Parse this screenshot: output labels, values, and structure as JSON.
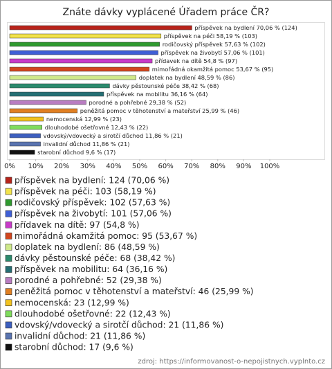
{
  "chart_data": {
    "type": "bar",
    "orientation": "horizontal",
    "title": "Znáte dávky vyplácené Úřadem práce ČR?",
    "categories": [
      "příspěvek na bydlení",
      "příspěvek na péči",
      "rodičovský příspěvek",
      "příspěvek na živobytí",
      "přídavek na dítě",
      "mimořádná okamžitá pomoc",
      "doplatek na bydlení",
      "dávky pěstounské péče",
      "příspěvek na mobilitu",
      "porodné a pohřebné",
      "peněžitá pomoc v těhotenství a mateřství",
      "nemocenská",
      "dlouhodobé ošetřovné",
      "vdovský/vdovecký a sirotčí důchod",
      "invalidní důchod",
      "starobní důchod"
    ],
    "values": [
      70.06,
      58.19,
      57.63,
      57.06,
      54.8,
      53.67,
      48.59,
      38.42,
      36.16,
      29.38,
      25.99,
      12.99,
      12.43,
      11.86,
      11.86,
      9.6
    ],
    "value_labels": [
      "70,06 % (124)",
      "58,19 % (103)",
      "57,63 % (102)",
      "57,06 % (101)",
      "54,8 % (97)",
      "53,67 % (95)",
      "48,59 % (86)",
      "38,42 % (68)",
      "36,16 % (64)",
      "29,38 % (52)",
      "25,99 % (46)",
      "12,99 % (23)",
      "12,43 % (22)",
      "11,86 % (21)",
      "11,86 % (21)",
      "9,6 % (17)"
    ],
    "colors": [
      "#b8231a",
      "#f2e34a",
      "#2f9a2f",
      "#3f5fd6",
      "#c93bc9",
      "#d2461e",
      "#cfe98a",
      "#2b8a6d",
      "#256f74",
      "#b97cc1",
      "#e07f22",
      "#f2c21f",
      "#7fdc5c",
      "#3d5fbf",
      "#5a74b0",
      "#111111"
    ],
    "legend": [
      "příspěvek na bydlení: 124 (70,06 %)",
      "příspěvek na péči: 103 (58,19 %)",
      "rodičovský příspěvek: 102 (57,63 %)",
      "příspěvek na živobytí: 101 (57,06 %)",
      "přídavek na dítě: 97 (54,8 %)",
      "mimořádná okamžitá pomoc: 95 (53,67 %)",
      "doplatek na bydlení: 86 (48,59 %)",
      "dávky pěstounské péče: 68 (38,42 %)",
      "příspěvek na mobilitu: 64 (36,16 %)",
      "porodné a pohřebné: 52 (29,38 %)",
      "peněžitá pomoc v těhotenství a mateřství: 46 (25,99 %)",
      "nemocenská: 23 (12,99 %)",
      "dlouhodobé ošetřovné: 22 (12,43 %)",
      "vdovský/vdovecký a sirotčí důchod: 21 (11,86 %)",
      "invalidní důchod: 21 (11,86 %)",
      "starobní důchod: 17 (9,6 %)"
    ],
    "xlim": [
      0,
      100
    ],
    "xticks": [
      {
        "value": 0,
        "label": "0%"
      },
      {
        "value": 10,
        "label": "10%"
      },
      {
        "value": 20,
        "label": "20%"
      },
      {
        "value": 30,
        "label": "30%"
      },
      {
        "value": 40,
        "label": "40%"
      },
      {
        "value": 50,
        "label": "50%"
      },
      {
        "value": 60,
        "label": "60%"
      },
      {
        "value": 70,
        "label": "70%"
      },
      {
        "value": 80,
        "label": "80%"
      },
      {
        "value": 90,
        "label": "90%"
      },
      {
        "value": 100,
        "label": "100%"
      }
    ],
    "source": "zdroj: https://informovanost-o-nepojistnych.vyplnto.cz"
  }
}
